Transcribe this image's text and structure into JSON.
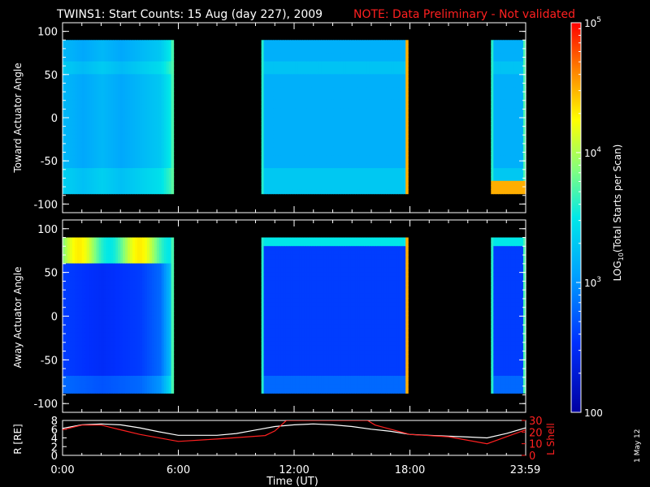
{
  "title": {
    "main": "TWINS1: Start Counts: 15 Aug (day 227), 2009",
    "note": "NOTE: Data Preliminary - Not validated",
    "note_color": "#ff2020"
  },
  "side_note": "1 May 12",
  "colors": {
    "eph_r": "#ffffff",
    "eph_l": "#ff2020",
    "axis": "#ffffff",
    "background": "#000000"
  },
  "chart_data": [
    {
      "type": "heatmap",
      "panel": "toward",
      "ylabel": "Toward Actuator Angle",
      "ylim": [
        -110,
        110
      ],
      "yticks": [
        100,
        50,
        0,
        -50,
        -100
      ],
      "angle_range": [
        -88,
        90
      ],
      "xlim": [
        0,
        24
      ],
      "data_intervals_hours": [
        [
          0,
          5.75
        ],
        [
          10.3,
          17.9
        ],
        [
          22.2,
          24
        ]
      ],
      "series": [
        {
          "name": "",
          "x_hours": [
            0,
            0.5,
            1,
            1.5,
            2,
            3,
            4,
            5,
            5.5,
            5.75
          ],
          "log_counts": [
            3.2,
            3.15,
            3.1,
            3.15,
            3.2,
            3.1,
            3.2,
            3.3,
            3.5,
            3.7
          ]
        }
      ]
    },
    {
      "type": "heatmap",
      "panel": "away",
      "ylabel": "Away Actuator Angle",
      "ylim": [
        -110,
        110
      ],
      "yticks": [
        100,
        50,
        0,
        -50,
        -100
      ],
      "angle_range": [
        -88,
        90
      ],
      "xlim": [
        0,
        24
      ],
      "data_intervals_hours": [
        [
          0,
          5.75
        ],
        [
          10.3,
          17.9
        ],
        [
          22.2,
          24
        ]
      ],
      "series": [
        {
          "name": "",
          "x_hours": [
            0,
            1,
            2,
            3,
            4,
            5,
            5.75
          ],
          "log_counts": [
            2.6,
            2.55,
            2.5,
            2.55,
            2.6,
            2.8,
            3.4
          ]
        }
      ]
    },
    {
      "type": "line",
      "panel": "ephemeris",
      "ylabel_left": "R [RE]",
      "ylabel_right": "L Shell",
      "ylim_left": [
        0,
        8
      ],
      "yticks_left": [
        8,
        6,
        4,
        2,
        0
      ],
      "ylim_right": [
        0,
        30
      ],
      "yticks_right": [
        30,
        20,
        10,
        0
      ],
      "xlim": [
        0,
        24
      ],
      "xticks": [
        "0:00",
        "6:00",
        "12:00",
        "18:00",
        "23:59"
      ],
      "xticks_hours": [
        0,
        6,
        12,
        18,
        23.98
      ],
      "xlabel": "Time (UT)",
      "series": [
        {
          "name": "R",
          "x": [
            0,
            1,
            2,
            3,
            4,
            5,
            6,
            8,
            9,
            10,
            11,
            12,
            13,
            14,
            15,
            16,
            17,
            18,
            19,
            20,
            21,
            22,
            23,
            24
          ],
          "y": [
            6.2,
            7.0,
            7.2,
            7.0,
            6.3,
            5.4,
            4.6,
            4.6,
            5.0,
            5.8,
            6.6,
            7.0,
            7.2,
            7.0,
            6.6,
            6.0,
            5.5,
            4.8,
            4.6,
            4.4,
            4.2,
            4.0,
            5.0,
            6.3
          ]
        },
        {
          "name": "L Shell",
          "x": [
            0,
            1,
            2,
            3,
            4,
            6,
            8,
            10.5,
            11,
            11.6,
            15.8,
            16.2,
            18,
            20,
            22,
            23,
            24
          ],
          "y": [
            22,
            26,
            26,
            22,
            18,
            12,
            14,
            17,
            21,
            30,
            30,
            26,
            18,
            16,
            10,
            16,
            22
          ]
        }
      ]
    },
    {
      "type": "heatmap",
      "panel": "colorbar",
      "label_parts": [
        "LOG",
        "10",
        "(Total Starts per Scan)"
      ],
      "ticks": [
        {
          "value": 100000,
          "label_base": "10",
          "label_exp": "5"
        },
        {
          "value": 10000,
          "label_base": "10",
          "label_exp": "4"
        },
        {
          "value": 1000,
          "label_base": "10",
          "label_exp": "3"
        },
        {
          "value": 100,
          "label_base": "100",
          "label_exp": ""
        }
      ],
      "range": [
        100,
        100000
      ]
    }
  ]
}
